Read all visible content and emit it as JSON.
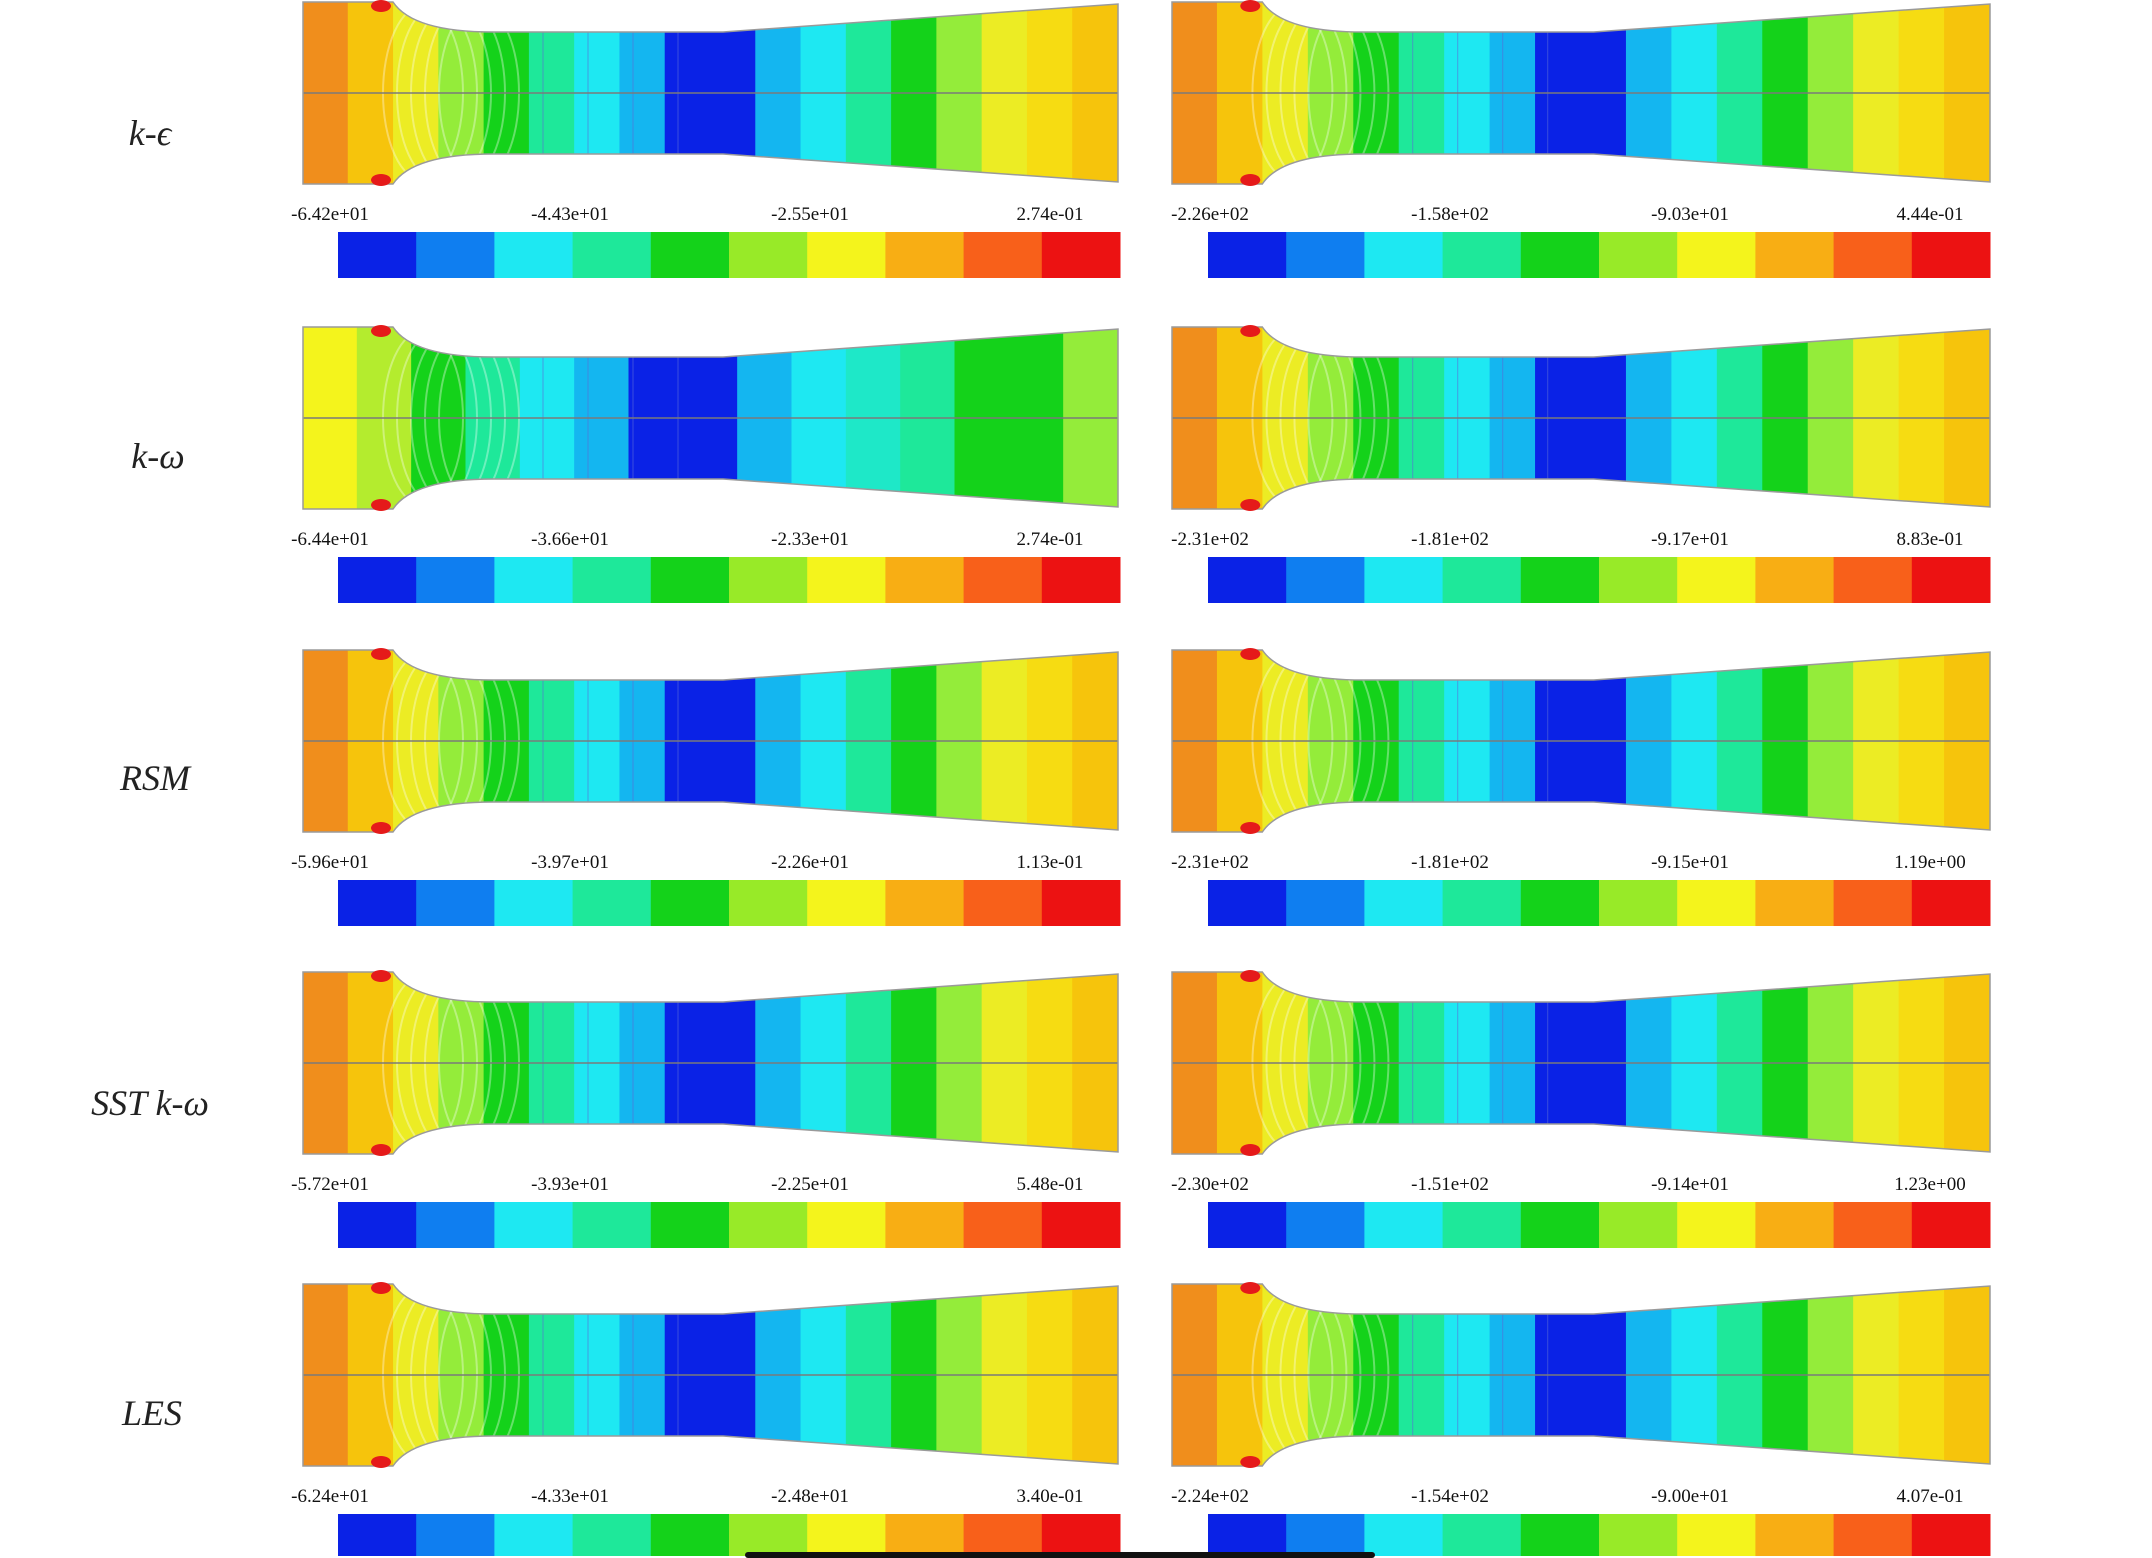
{
  "rows": [
    {
      "model": "k-ϵ",
      "panels": [
        {
          "variant": "A",
          "scale_labels": [
            "-6.42e+01",
            "-4.43e+01",
            "-2.55e+01",
            "2.74e-01"
          ]
        },
        {
          "variant": "B",
          "scale_labels": [
            "-2.26e+02",
            "-1.58e+02",
            "-9.03e+01",
            "4.44e-01"
          ]
        }
      ]
    },
    {
      "model": "k-ω",
      "panels": [
        {
          "variant": "C",
          "scale_labels": [
            "-6.44e+01",
            "-3.66e+01",
            "-2.33e+01",
            "2.74e-01"
          ]
        },
        {
          "variant": "B",
          "scale_labels": [
            "-2.31e+02",
            "-1.81e+02",
            "-9.17e+01",
            "8.83e-01"
          ]
        }
      ]
    },
    {
      "model": "RSM",
      "panels": [
        {
          "variant": "A",
          "scale_labels": [
            "-5.96e+01",
            "-3.97e+01",
            "-2.26e+01",
            "1.13e-01"
          ]
        },
        {
          "variant": "B",
          "scale_labels": [
            "-2.31e+02",
            "-1.81e+02",
            "-9.15e+01",
            "1.19e+00"
          ]
        }
      ]
    },
    {
      "model": "SST k-ω",
      "panels": [
        {
          "variant": "A",
          "scale_labels": [
            "-5.72e+01",
            "-3.93e+01",
            "-2.25e+01",
            "5.48e-01"
          ]
        },
        {
          "variant": "B",
          "scale_labels": [
            "-2.30e+02",
            "-1.51e+02",
            "-9.14e+01",
            "1.23e+00"
          ]
        }
      ]
    },
    {
      "model": "LES",
      "panels": [
        {
          "variant": "A",
          "scale_labels": [
            "-6.24e+01",
            "-4.33e+01",
            "-2.48e+01",
            "3.40e-01"
          ]
        },
        {
          "variant": "B",
          "scale_labels": [
            "-2.24e+02",
            "-1.54e+02",
            "-9.00e+01",
            "4.07e-01"
          ]
        }
      ]
    }
  ],
  "colormap": [
    "#0a22e6",
    "#0f7ef0",
    "#1ee8f2",
    "#1ee89a",
    "#14d21a",
    "#98ea28",
    "#f4f41c",
    "#f8ae14",
    "#f8601a",
    "#ec1212"
  ],
  "bands": {
    "A": [
      "#f08e1c",
      "#f6c40c",
      "#ecec24",
      "#94ec3a",
      "#14d21a",
      "#1ee89a",
      "#1ee8f2",
      "#14b6f0",
      "#0a22e6",
      "#0a22e6",
      "#14b6f0",
      "#1ee8f2",
      "#1ee89a",
      "#14d21a",
      "#94ec3a",
      "#ecec24",
      "#f6dc12",
      "#f6c40c"
    ],
    "B": [
      "#f08e1c",
      "#f6c40c",
      "#ecec24",
      "#94ec3a",
      "#14d21a",
      "#1ee89a",
      "#1ee8f2",
      "#14b6f0",
      "#0a22e6",
      "#0a22e6",
      "#14b6f0",
      "#1ee8f2",
      "#1ee89a",
      "#14d21a",
      "#94ec3a",
      "#ecec24",
      "#f6dc12",
      "#f6c40c"
    ],
    "C": [
      "#f4f41c",
      "#b4ec2e",
      "#14d21a",
      "#1ee89a",
      "#1ee8f2",
      "#14b6f0",
      "#0a22e6",
      "#0a22e6",
      "#14b6f0",
      "#1ee8f2",
      "#1ee8c8",
      "#1ee89a",
      "#14d21a",
      "#14d21a",
      "#94ec3a"
    ]
  },
  "accent": {
    "wall_marker": "#e51a1a",
    "axis_line": "#7a7a7a",
    "grid_line": "#5b6bd8"
  }
}
